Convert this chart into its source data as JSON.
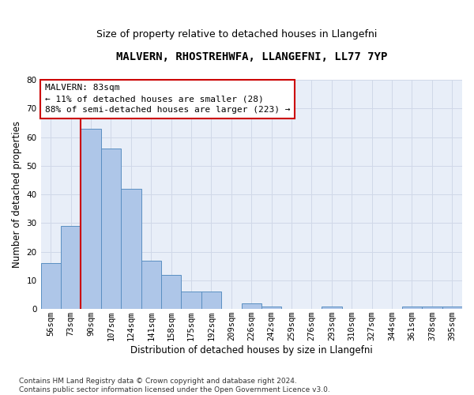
{
  "title": "MALVERN, RHOSTREHWFA, LLANGEFNI, LL77 7YP",
  "subtitle": "Size of property relative to detached houses in Llangefni",
  "xlabel": "Distribution of detached houses by size in Llangefni",
  "ylabel": "Number of detached properties",
  "categories": [
    "56sqm",
    "73sqm",
    "90sqm",
    "107sqm",
    "124sqm",
    "141sqm",
    "158sqm",
    "175sqm",
    "192sqm",
    "209sqm",
    "226sqm",
    "242sqm",
    "259sqm",
    "276sqm",
    "293sqm",
    "310sqm",
    "327sqm",
    "344sqm",
    "361sqm",
    "378sqm",
    "395sqm"
  ],
  "values": [
    16,
    29,
    63,
    56,
    42,
    17,
    12,
    6,
    6,
    0,
    2,
    1,
    0,
    0,
    1,
    0,
    0,
    0,
    1,
    1,
    1
  ],
  "bar_color": "#aec6e8",
  "bar_edge_color": "#5a8fc2",
  "vline_color": "#cc0000",
  "vline_x": 1.5,
  "annotation_text": "MALVERN: 83sqm\n← 11% of detached houses are smaller (28)\n88% of semi-detached houses are larger (223) →",
  "annotation_box_color": "#ffffff",
  "annotation_box_edge": "#cc0000",
  "ylim": [
    0,
    80
  ],
  "yticks": [
    0,
    10,
    20,
    30,
    40,
    50,
    60,
    70,
    80
  ],
  "grid_color": "#d0d8e8",
  "bg_color": "#e8eef8",
  "footer": "Contains HM Land Registry data © Crown copyright and database right 2024.\nContains public sector information licensed under the Open Government Licence v3.0.",
  "title_fontsize": 10,
  "subtitle_fontsize": 9,
  "xlabel_fontsize": 8.5,
  "ylabel_fontsize": 8.5,
  "tick_fontsize": 7.5,
  "annotation_fontsize": 8,
  "footer_fontsize": 6.5
}
